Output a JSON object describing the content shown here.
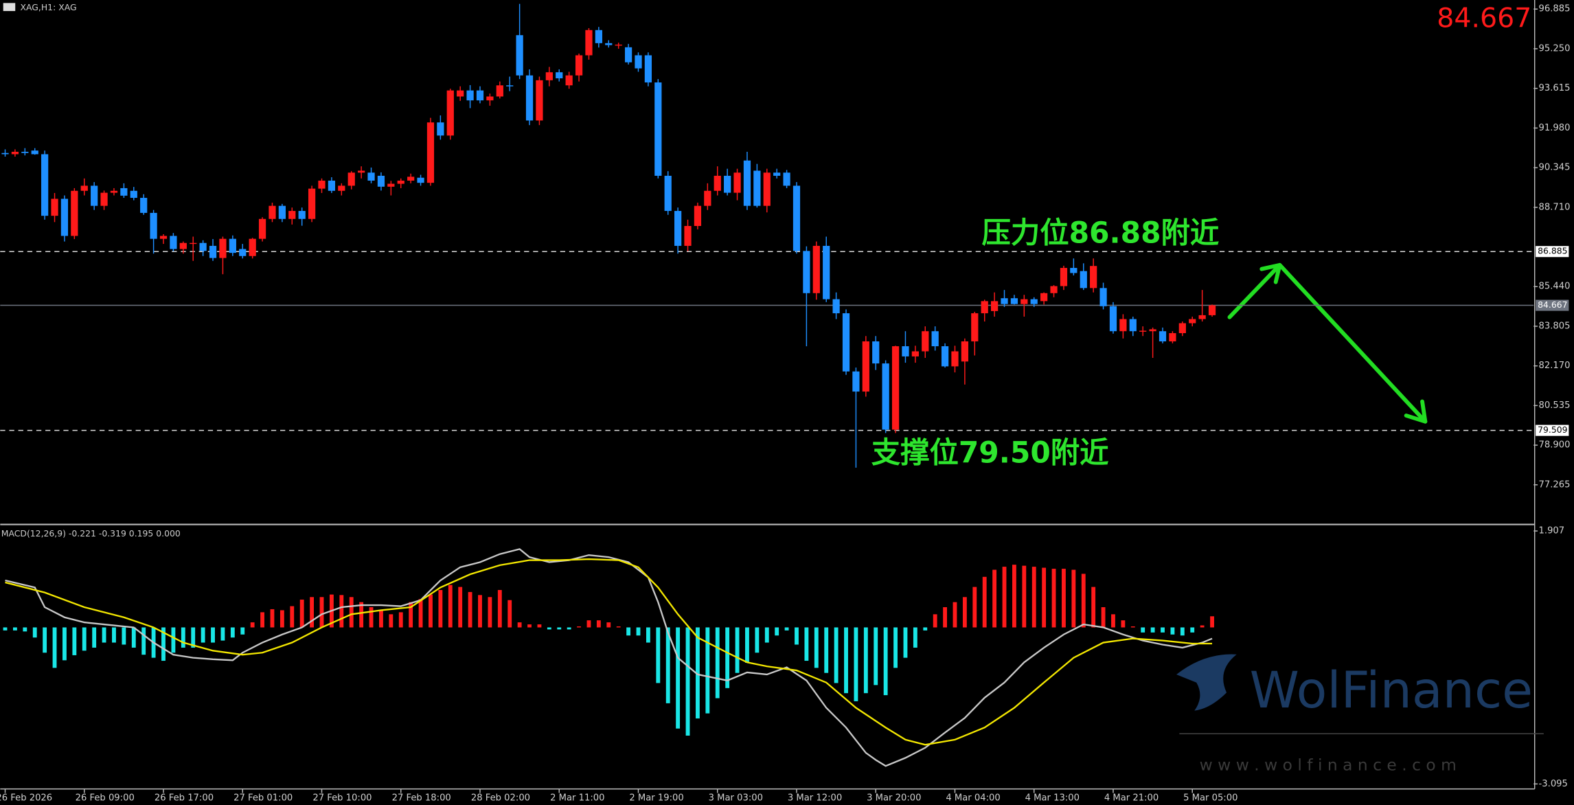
{
  "chart_data": [
    {
      "type": "candlestick",
      "symbol": "XAG,H1: XAG",
      "up_color": "#ff1a1a",
      "down_color": "#1e8fff",
      "xlim": [
        -0.5,
        154.5
      ],
      "ylim": [
        75.65,
        97.26
      ],
      "yticks": [
        96.885,
        {
          "value": 95.25,
          "label": "95.250"
        },
        93.615,
        {
          "value": 91.98,
          "label": "91.980"
        },
        90.345,
        {
          "value": 88.71,
          "label": "88.710"
        },
        {
          "value": 85.44,
          "label": "85.440"
        },
        83.805,
        {
          "value": 82.17,
          "label": "82.170"
        },
        80.535,
        {
          "value": 78.9,
          "label": "78.900"
        },
        77.265
      ],
      "xticks": [
        {
          "value": 0,
          "label": "26 Feb 2026"
        },
        {
          "value": 8,
          "label": "26 Feb 09:00"
        },
        {
          "value": 16,
          "label": "26 Feb 17:00"
        },
        {
          "value": 24,
          "label": "27 Feb 01:00"
        },
        {
          "value": 32,
          "label": "27 Feb 10:00"
        },
        {
          "value": 40,
          "label": "27 Feb 18:00"
        },
        {
          "value": 48,
          "label": "28 Feb 02:00"
        },
        {
          "value": 56,
          "label": "2 Mar 11:00"
        },
        {
          "value": 64,
          "label": "2 Mar 19:00"
        },
        {
          "value": 72,
          "label": "3 Mar 03:00"
        },
        {
          "value": 80,
          "label": "3 Mar 12:00"
        },
        {
          "value": 88,
          "label": "3 Mar 20:00"
        },
        {
          "value": 96,
          "label": "4 Mar 04:00"
        },
        {
          "value": 104,
          "label": "4 Mar 13:00"
        },
        {
          "value": 112,
          "label": "4 Mar 21:00"
        },
        {
          "value": 120,
          "label": "5 Mar 05:00"
        }
      ],
      "levels": [
        86.885,
        79.509
      ],
      "current_price": 84.667,
      "annotations": [
        "压力位86.88附近",
        "支撑位79.50附近"
      ],
      "watermark": {
        "brand": "WolFinance",
        "url": "w w w . w o l f i n a n c e . c o m"
      },
      "candles": [
        [
          90.95,
          91.1,
          90.8,
          90.9
        ],
        [
          90.9,
          91.1,
          90.8,
          91.0
        ],
        [
          91.0,
          91.15,
          90.85,
          90.95
        ],
        [
          91.05,
          91.15,
          90.88,
          90.9
        ],
        [
          90.9,
          91.05,
          88.2,
          88.36
        ],
        [
          88.36,
          89.3,
          88.1,
          89.06
        ],
        [
          89.06,
          89.2,
          87.3,
          87.53
        ],
        [
          87.53,
          89.5,
          87.4,
          89.39
        ],
        [
          89.39,
          89.9,
          89.2,
          89.6
        ],
        [
          89.6,
          89.75,
          88.6,
          88.77
        ],
        [
          88.77,
          89.4,
          88.6,
          89.31
        ],
        [
          89.31,
          89.5,
          89.2,
          89.39
        ],
        [
          89.5,
          89.7,
          89.1,
          89.19
        ],
        [
          89.39,
          89.55,
          89.0,
          89.1
        ],
        [
          89.1,
          89.25,
          88.4,
          88.48
        ],
        [
          88.48,
          88.6,
          86.8,
          87.41
        ],
        [
          87.41,
          87.6,
          87.2,
          87.53
        ],
        [
          87.53,
          87.65,
          86.9,
          86.99
        ],
        [
          86.99,
          87.3,
          86.8,
          87.24
        ],
        [
          87.2,
          87.5,
          86.5,
          87.24
        ],
        [
          87.24,
          87.35,
          86.7,
          86.91
        ],
        [
          87.12,
          87.4,
          86.5,
          86.62
        ],
        [
          86.62,
          87.5,
          85.95,
          87.41
        ],
        [
          87.41,
          87.55,
          86.7,
          86.83
        ],
        [
          86.99,
          87.2,
          86.6,
          86.7
        ],
        [
          86.7,
          87.45,
          86.6,
          87.41
        ],
        [
          87.41,
          88.3,
          87.3,
          88.23
        ],
        [
          88.23,
          88.9,
          88.1,
          88.77
        ],
        [
          88.77,
          88.85,
          88.1,
          88.23
        ],
        [
          88.23,
          88.7,
          88.0,
          88.56
        ],
        [
          88.56,
          88.7,
          87.95,
          88.23
        ],
        [
          88.23,
          89.6,
          88.1,
          89.48
        ],
        [
          89.48,
          89.9,
          89.3,
          89.81
        ],
        [
          89.81,
          89.95,
          89.3,
          89.39
        ],
        [
          89.39,
          89.7,
          89.2,
          89.6
        ],
        [
          89.6,
          90.2,
          89.45,
          90.14
        ],
        [
          90.14,
          90.4,
          89.9,
          90.22
        ],
        [
          90.14,
          90.35,
          89.7,
          89.81
        ],
        [
          90.01,
          90.15,
          89.4,
          89.56
        ],
        [
          89.56,
          89.8,
          89.2,
          89.68
        ],
        [
          89.68,
          89.9,
          89.5,
          89.81
        ],
        [
          89.81,
          90.1,
          89.7,
          89.97
        ],
        [
          89.93,
          90.05,
          89.6,
          89.72
        ],
        [
          89.72,
          92.4,
          89.6,
          92.21
        ],
        [
          92.21,
          92.5,
          91.5,
          91.67
        ],
        [
          91.67,
          93.6,
          91.5,
          93.53
        ],
        [
          93.28,
          93.7,
          93.1,
          93.53
        ],
        [
          93.53,
          93.75,
          92.8,
          93.12
        ],
        [
          93.53,
          93.7,
          93.0,
          93.12
        ],
        [
          93.12,
          93.4,
          92.9,
          93.28
        ],
        [
          93.28,
          93.9,
          93.2,
          93.74
        ],
        [
          93.74,
          94.1,
          93.5,
          93.7
        ],
        [
          95.81,
          97.1,
          94.0,
          94.15
        ],
        [
          94.15,
          94.4,
          92.1,
          92.29
        ],
        [
          92.29,
          94.1,
          92.1,
          93.95
        ],
        [
          93.95,
          94.5,
          93.7,
          94.28
        ],
        [
          94.28,
          94.4,
          93.9,
          94.03
        ],
        [
          93.74,
          94.3,
          93.6,
          94.15
        ],
        [
          94.15,
          95.05,
          93.9,
          94.98
        ],
        [
          94.98,
          96.1,
          94.8,
          96.02
        ],
        [
          96.02,
          96.15,
          95.3,
          95.48
        ],
        [
          95.48,
          95.6,
          95.3,
          95.4
        ],
        [
          95.4,
          95.5,
          95.25,
          95.42
        ],
        [
          95.31,
          95.45,
          94.6,
          94.69
        ],
        [
          94.98,
          95.1,
          94.3,
          94.44
        ],
        [
          94.98,
          95.1,
          93.7,
          93.86
        ],
        [
          93.86,
          94.0,
          89.9,
          90.01
        ],
        [
          90.01,
          90.2,
          88.4,
          88.56
        ],
        [
          88.56,
          88.7,
          86.8,
          87.12
        ],
        [
          87.12,
          88.2,
          86.9,
          87.94
        ],
        [
          87.94,
          88.9,
          87.8,
          88.77
        ],
        [
          88.77,
          89.7,
          88.6,
          89.39
        ],
        [
          89.39,
          90.4,
          89.2,
          90.01
        ],
        [
          90.01,
          90.3,
          89.2,
          89.31
        ],
        [
          89.31,
          90.3,
          89.0,
          90.14
        ],
        [
          90.64,
          91.0,
          88.6,
          88.77
        ],
        [
          90.22,
          90.5,
          88.7,
          88.77
        ],
        [
          88.77,
          90.3,
          88.5,
          90.14
        ],
        [
          90.14,
          90.3,
          89.9,
          90.01
        ],
        [
          90.14,
          90.25,
          89.5,
          89.6
        ],
        [
          89.6,
          89.75,
          86.8,
          86.91
        ],
        [
          86.91,
          87.1,
          82.98,
          85.17
        ],
        [
          85.17,
          87.3,
          84.9,
          87.12
        ],
        [
          87.12,
          87.5,
          84.8,
          84.92
        ],
        [
          84.92,
          85.2,
          84.1,
          84.34
        ],
        [
          84.34,
          84.5,
          81.8,
          81.94
        ],
        [
          81.94,
          82.1,
          77.97,
          81.11
        ],
        [
          81.11,
          83.4,
          80.9,
          83.18
        ],
        [
          83.18,
          83.4,
          82.0,
          82.27
        ],
        [
          82.27,
          82.4,
          79.4,
          79.54
        ],
        [
          79.54,
          83.0,
          79.4,
          82.98
        ],
        [
          82.98,
          83.6,
          82.3,
          82.56
        ],
        [
          82.56,
          83.0,
          82.3,
          82.77
        ],
        [
          82.77,
          83.8,
          82.5,
          83.6
        ],
        [
          83.6,
          83.8,
          82.8,
          82.98
        ],
        [
          82.98,
          83.1,
          82.1,
          82.15
        ],
        [
          82.15,
          83.0,
          81.9,
          82.77
        ],
        [
          82.35,
          83.3,
          81.4,
          83.18
        ],
        [
          83.18,
          84.4,
          82.6,
          84.34
        ],
        [
          84.34,
          84.9,
          84.0,
          84.84
        ],
        [
          84.43,
          85.2,
          84.2,
          84.84
        ],
        [
          84.96,
          85.3,
          84.6,
          84.72
        ],
        [
          84.96,
          85.1,
          84.7,
          84.72
        ],
        [
          84.72,
          85.1,
          84.2,
          84.92
        ],
        [
          84.92,
          85.0,
          84.6,
          84.72
        ],
        [
          84.84,
          85.2,
          84.7,
          85.17
        ],
        [
          85.17,
          85.5,
          85.0,
          85.46
        ],
        [
          85.46,
          86.3,
          85.3,
          86.21
        ],
        [
          86.21,
          86.6,
          85.9,
          86.0
        ],
        [
          86.08,
          86.4,
          85.3,
          85.38
        ],
        [
          85.38,
          86.6,
          85.2,
          86.29
        ],
        [
          85.38,
          85.6,
          84.5,
          84.63
        ],
        [
          84.63,
          84.8,
          83.5,
          83.6
        ],
        [
          83.6,
          84.3,
          83.3,
          84.1
        ],
        [
          84.1,
          84.2,
          83.4,
          83.6
        ],
        [
          83.6,
          83.8,
          83.4,
          83.62
        ],
        [
          83.6,
          83.75,
          82.5,
          83.68
        ],
        [
          83.6,
          83.75,
          83.1,
          83.18
        ],
        [
          83.18,
          83.6,
          83.1,
          83.52
        ],
        [
          83.52,
          84.0,
          83.4,
          83.93
        ],
        [
          83.93,
          84.2,
          83.8,
          84.1
        ],
        [
          84.1,
          85.3,
          84.0,
          84.26
        ],
        [
          84.26,
          84.7,
          84.2,
          84.67
        ]
      ]
    },
    {
      "type": "macd",
      "label": "MACD(12,26,9) -0.221 -0.319 0.195 0.000",
      "xlim": [
        -0.5,
        154.5
      ],
      "ylim": [
        -3.095,
        1.907
      ],
      "yticks": [
        1.907,
        -3.095
      ],
      "histogram": {
        "up_color": "#ff1a1a",
        "down_color": "#19e6e6",
        "values": [
          -0.06,
          -0.06,
          -0.08,
          -0.2,
          -0.5,
          -0.8,
          -0.65,
          -0.55,
          -0.46,
          -0.4,
          -0.3,
          -0.3,
          -0.34,
          -0.4,
          -0.54,
          -0.6,
          -0.66,
          -0.5,
          -0.4,
          -0.4,
          -0.3,
          -0.3,
          -0.26,
          -0.2,
          -0.14,
          0.1,
          0.3,
          0.36,
          0.34,
          0.42,
          0.55,
          0.6,
          0.6,
          0.65,
          0.64,
          0.6,
          0.5,
          0.4,
          0.34,
          0.26,
          0.3,
          0.5,
          0.56,
          0.65,
          0.74,
          0.84,
          0.8,
          0.7,
          0.64,
          0.6,
          0.74,
          0.54,
          0.1,
          0.06,
          0.06,
          -0.04,
          -0.04,
          -0.04,
          0.02,
          0.14,
          0.14,
          0.1,
          0.02,
          -0.16,
          -0.16,
          -0.3,
          -1.1,
          -1.5,
          -2.0,
          -2.14,
          -1.8,
          -1.7,
          -1.4,
          -1.2,
          -0.9,
          -0.7,
          -0.5,
          -0.3,
          -0.16,
          -0.06,
          -0.34,
          -0.66,
          -0.8,
          -0.9,
          -1.1,
          -1.3,
          -1.46,
          -1.3,
          -1.14,
          -1.34,
          -0.8,
          -0.6,
          -0.4,
          -0.06,
          0.26,
          0.4,
          0.5,
          0.6,
          0.8,
          1.0,
          1.14,
          1.2,
          1.24,
          1.22,
          1.2,
          1.18,
          1.16,
          1.16,
          1.14,
          1.06,
          0.8,
          0.4,
          0.26,
          0.14,
          0.02,
          -0.1,
          -0.1,
          -0.1,
          -0.14,
          -0.16,
          -0.1,
          0.04,
          0.22
        ]
      },
      "lines": [
        {
          "color": "#c8c8c8",
          "x": [
            0,
            3,
            4,
            6,
            8,
            10,
            13,
            15,
            17,
            19,
            21,
            23,
            24,
            26,
            28,
            30,
            32,
            34,
            36,
            38,
            40,
            42,
            44,
            46,
            48,
            50,
            52,
            53,
            55,
            57,
            59,
            61,
            63,
            65,
            66,
            67,
            68,
            70,
            73,
            75,
            77,
            79,
            81,
            83,
            85,
            87,
            88,
            89,
            91,
            93,
            95,
            97,
            99,
            101,
            103,
            105,
            107,
            109,
            111,
            113,
            115,
            117,
            119,
            121,
            122
          ],
          "values": [
            0.93,
            0.79,
            0.4,
            0.2,
            0.1,
            0.06,
            0,
            -0.3,
            -0.54,
            -0.6,
            -0.63,
            -0.65,
            -0.5,
            -0.3,
            -0.14,
            0,
            0.26,
            0.4,
            0.44,
            0.44,
            0.42,
            0.54,
            0.93,
            1.19,
            1.29,
            1.45,
            1.55,
            1.39,
            1.29,
            1.33,
            1.43,
            1.39,
            1.29,
            0.99,
            0.5,
            -0.1,
            -0.6,
            -0.93,
            -1.05,
            -0.89,
            -0.93,
            -0.79,
            -1.05,
            -1.59,
            -1.98,
            -2.48,
            -2.62,
            -2.74,
            -2.58,
            -2.38,
            -2.08,
            -1.79,
            -1.39,
            -1.09,
            -0.69,
            -0.4,
            -0.14,
            0.06,
            0,
            -0.14,
            -0.26,
            -0.34,
            -0.4,
            -0.3,
            -0.22
          ]
        },
        {
          "color": "#f2e600",
          "x": [
            0,
            4,
            8,
            12,
            15,
            18,
            21,
            24,
            26,
            29,
            32,
            35,
            38,
            41,
            44,
            47,
            50,
            53,
            56,
            59,
            62,
            64,
            66,
            68,
            70,
            73,
            75,
            77,
            80,
            83,
            86,
            89,
            91,
            93,
            96,
            99,
            102,
            105,
            108,
            111,
            114,
            117,
            120,
            122
          ],
          "values": [
            0.89,
            0.69,
            0.4,
            0.2,
            0,
            -0.3,
            -0.46,
            -0.54,
            -0.5,
            -0.3,
            0,
            0.26,
            0.34,
            0.4,
            0.79,
            1.05,
            1.23,
            1.33,
            1.33,
            1.35,
            1.33,
            1.19,
            0.79,
            0.26,
            -0.2,
            -0.5,
            -0.69,
            -0.77,
            -0.85,
            -1.09,
            -1.59,
            -1.98,
            -2.22,
            -2.32,
            -2.22,
            -1.98,
            -1.59,
            -1.09,
            -0.6,
            -0.3,
            -0.22,
            -0.26,
            -0.32,
            -0.32
          ]
        }
      ]
    }
  ]
}
